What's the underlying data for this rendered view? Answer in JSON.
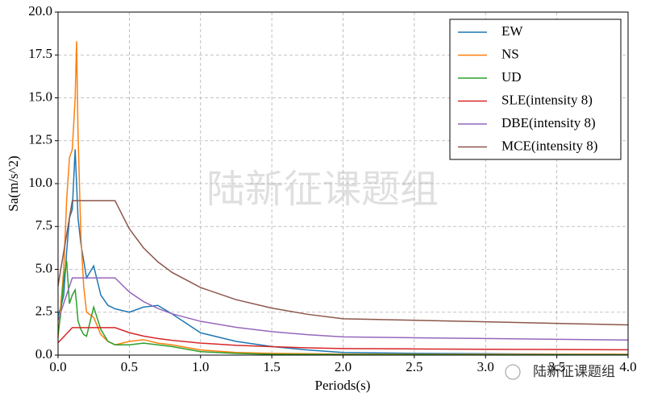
{
  "chart_data": {
    "type": "line",
    "xlabel": "Periods(s)",
    "ylabel": "Sa(m/s^2)",
    "watermark": "陆新征课题组",
    "brand": "陆新征课题组",
    "x": [
      0,
      0.02,
      0.04,
      0.06,
      0.08,
      0.1,
      0.12,
      0.13,
      0.14,
      0.16,
      0.18,
      0.2,
      0.25,
      0.3,
      0.35,
      0.4,
      0.5,
      0.6,
      0.7,
      0.8,
      1.0,
      1.25,
      1.5,
      1.75,
      2.0,
      2.5,
      3.0,
      3.5,
      4.0
    ],
    "series": [
      {
        "name": "EW",
        "color": "#1f77b4",
        "values": [
          2.3,
          2.8,
          3.5,
          6.0,
          8.0,
          8.5,
          12.0,
          10.0,
          8.0,
          6.5,
          5.5,
          4.5,
          5.2,
          3.5,
          2.9,
          2.7,
          2.5,
          2.8,
          2.9,
          2.4,
          1.3,
          0.8,
          0.5,
          0.3,
          0.15,
          0.1,
          0.08,
          0.06,
          0.05
        ]
      },
      {
        "name": "NS",
        "color": "#ff7f0e",
        "values": [
          1.0,
          3.0,
          5.0,
          9.0,
          11.5,
          12.0,
          15.0,
          18.3,
          13.0,
          7.0,
          4.0,
          2.5,
          2.2,
          1.2,
          0.8,
          0.6,
          0.8,
          0.9,
          0.7,
          0.6,
          0.3,
          0.15,
          0.1,
          0.08,
          0.06,
          0.05,
          0.05,
          0.05,
          0.05
        ]
      },
      {
        "name": "UD",
        "color": "#2ca02c",
        "values": [
          1.2,
          2.5,
          4.5,
          5.5,
          3.0,
          3.5,
          3.8,
          3.0,
          2.0,
          1.5,
          1.2,
          1.1,
          2.8,
          1.5,
          0.8,
          0.6,
          0.6,
          0.7,
          0.6,
          0.5,
          0.2,
          0.1,
          0.05,
          0.04,
          0.03,
          0.03,
          0.02,
          0.02,
          0.02
        ]
      },
      {
        "name": "SLE(intensity 8)",
        "color": "#d62728",
        "values": [
          0.72,
          0.9,
          1.07,
          1.25,
          1.42,
          1.6,
          1.6,
          1.6,
          1.6,
          1.6,
          1.6,
          1.6,
          1.6,
          1.6,
          1.6,
          1.6,
          1.31,
          1.11,
          0.97,
          0.86,
          0.7,
          0.57,
          0.49,
          0.42,
          0.38,
          0.36,
          0.34,
          0.33,
          0.31
        ]
      },
      {
        "name": "DBE(intensity 8)",
        "color": "#9467bd",
        "values": [
          2.03,
          2.52,
          3.02,
          3.51,
          4.01,
          4.5,
          4.5,
          4.5,
          4.5,
          4.5,
          4.5,
          4.5,
          4.5,
          4.5,
          4.5,
          4.5,
          3.68,
          3.12,
          2.72,
          2.41,
          1.97,
          1.62,
          1.37,
          1.19,
          1.06,
          1.01,
          0.97,
          0.92,
          0.88
        ]
      },
      {
        "name": "MCE(intensity 8)",
        "color": "#8c564b",
        "values": [
          4.05,
          5.04,
          6.03,
          7.02,
          8.01,
          9,
          9,
          9,
          9,
          9,
          9,
          9,
          9,
          9,
          9,
          9,
          7.36,
          6.25,
          5.44,
          4.82,
          3.94,
          3.23,
          2.74,
          2.38,
          2.12,
          2.03,
          1.94,
          1.85,
          1.76
        ]
      }
    ],
    "xlim": [
      0,
      4.0
    ],
    "xticks": [
      {
        "value": 0,
        "label": "0.0"
      },
      {
        "value": 0.5,
        "label": "0.5"
      },
      {
        "value": 1,
        "label": "1.0"
      },
      {
        "value": 1.5,
        "label": "1.5"
      },
      {
        "value": 2,
        "label": "2.0"
      },
      {
        "value": 2.5,
        "label": "2.5"
      },
      {
        "value": 3,
        "label": "3.0"
      },
      {
        "value": 3.5,
        "label": "3.5"
      },
      {
        "value": 4,
        "label": "4.0"
      }
    ],
    "ylim": [
      0,
      20
    ],
    "yticks": [
      {
        "value": 0,
        "label": "0.0"
      },
      {
        "value": 2.5,
        "label": "2.5"
      },
      {
        "value": 5,
        "label": "5.0"
      },
      {
        "value": 7.5,
        "label": "7.5"
      },
      {
        "value": 10,
        "label": "10.0"
      },
      {
        "value": 12.5,
        "label": "12.5"
      },
      {
        "value": 15,
        "label": "15.0"
      },
      {
        "value": 17.5,
        "label": "17.5"
      },
      {
        "value": 20,
        "label": "20.0"
      }
    ],
    "grid": true,
    "legend": "upper right"
  }
}
